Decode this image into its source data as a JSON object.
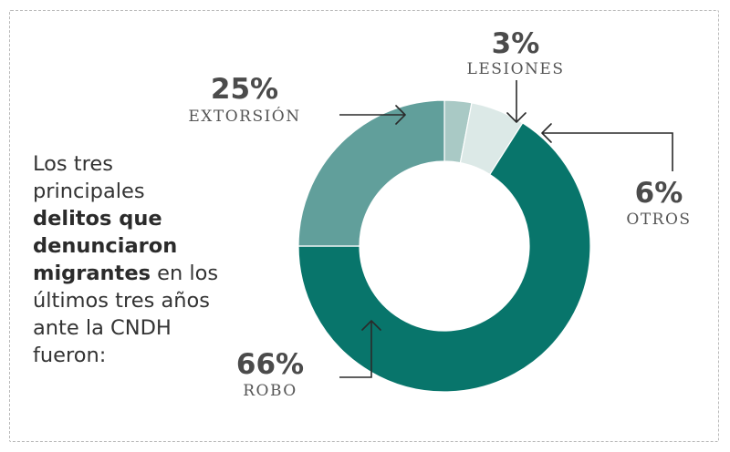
{
  "intro": {
    "line1": "Los tres",
    "line2": "principales",
    "line3": "delitos que",
    "line4": "denunciaron",
    "line5_bold": "migrantes",
    "line5_rest": " en los",
    "line6": "últimos tres años",
    "line7": "ante la CNDH",
    "line8": "fueron:"
  },
  "chart_data": {
    "type": "pie",
    "donut": true,
    "title": "",
    "categories": [
      "LESIONES",
      "OTROS",
      "ROBO",
      "EXTORSIÓN"
    ],
    "values": [
      3,
      6,
      66,
      25
    ],
    "labels": [
      "3%",
      "6%",
      "66%",
      "25%"
    ],
    "colors": [
      "#a9c9c5",
      "#dce9e7",
      "#08756b",
      "#619f9b"
    ],
    "start_angle_deg": 0
  }
}
